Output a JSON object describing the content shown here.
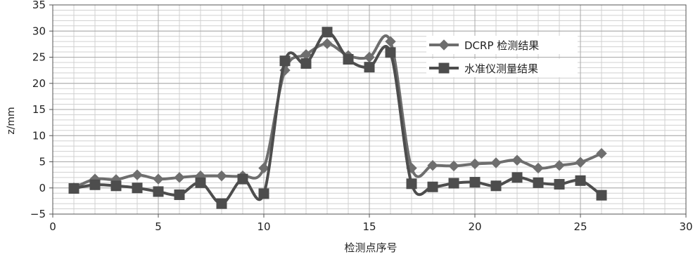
{
  "chart_data": {
    "type": "line",
    "xlabel": "检测点序号",
    "ylabel": "z/mm",
    "xlim": [
      0,
      30
    ],
    "ylim": [
      -5,
      35
    ],
    "x_ticks": [
      0,
      5,
      10,
      15,
      20,
      25,
      30
    ],
    "y_ticks": [
      -5,
      0,
      5,
      10,
      15,
      20,
      25,
      30,
      35
    ],
    "x_tick_labels": [
      "0",
      "5",
      "10",
      "15",
      "20",
      "25",
      "30"
    ],
    "y_tick_labels": [
      "−5",
      "0",
      "5",
      "10",
      "15",
      "20",
      "25",
      "30",
      "35"
    ],
    "grid": true,
    "legend_position": "upper-right",
    "series": [
      {
        "name": "DCRP 检测结果",
        "marker": "diamond",
        "color": "#6e6e6e",
        "x": [
          1,
          2,
          3,
          4,
          5,
          6,
          7,
          8,
          9,
          10,
          11,
          12,
          13,
          14,
          15,
          16,
          17,
          18,
          19,
          20,
          21,
          22,
          23,
          24,
          25,
          26
        ],
        "y": [
          0.0,
          1.7,
          1.6,
          2.5,
          1.7,
          2.0,
          2.3,
          2.3,
          2.3,
          3.8,
          22.5,
          25.5,
          27.6,
          25.3,
          25.0,
          28.0,
          3.8,
          4.3,
          4.2,
          4.6,
          4.8,
          5.3,
          3.8,
          4.3,
          4.9,
          6.6
        ]
      },
      {
        "name": "水准仪测量结果",
        "marker": "square",
        "color": "#4d4d4d",
        "x": [
          1,
          2,
          3,
          4,
          5,
          6,
          7,
          8,
          9,
          10,
          11,
          12,
          13,
          14,
          15,
          16,
          17,
          18,
          19,
          20,
          21,
          22,
          23,
          24,
          25,
          26
        ],
        "y": [
          -0.1,
          0.6,
          0.4,
          0.0,
          -0.7,
          -1.3,
          1.0,
          -3.0,
          1.7,
          -1.1,
          24.3,
          23.8,
          29.8,
          24.6,
          23.1,
          25.9,
          0.8,
          0.2,
          0.9,
          1.1,
          0.4,
          2.0,
          1.0,
          0.7,
          1.4,
          -1.4
        ]
      }
    ]
  }
}
